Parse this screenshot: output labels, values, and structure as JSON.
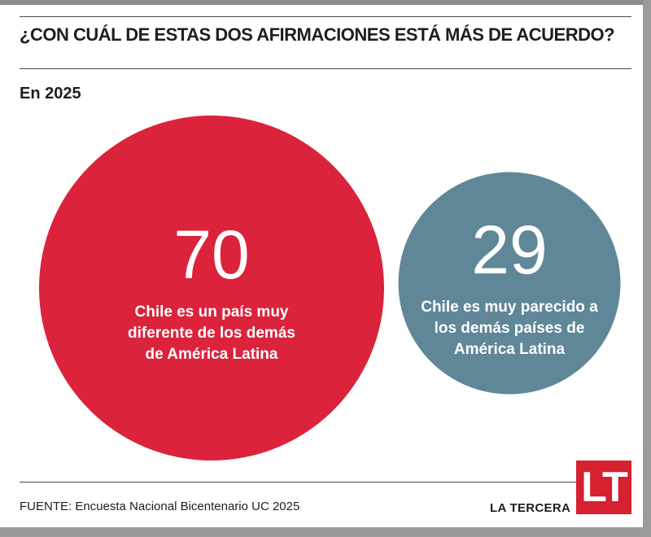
{
  "header": {
    "title": "¿CON CUÁL DE ESTAS DOS AFIRMACIONES ESTÁ MÁS DE ACUERDO?",
    "subtitle": "En 2025"
  },
  "chart_data": {
    "type": "bubble",
    "title": "¿CON CUÁL DE ESTAS DOS AFIRMACIONES ESTÁ MÁS DE ACUERDO?",
    "subtitle": "En 2025",
    "unit": "%",
    "items": [
      {
        "value": 70,
        "label_lines": [
          "Chile es un país muy",
          "diferente de los demás",
          "de América Latina"
        ],
        "color": "#db233b"
      },
      {
        "value": 29,
        "label_lines": [
          "Chile es muy parecido a",
          "los demás países de",
          "América Latina"
        ],
        "color": "#5f8798"
      }
    ]
  },
  "footer": {
    "source": "FUENTE: Encuesta Nacional Bicentenario UC 2025",
    "brand": "LA TERCERA",
    "logo_text": "LT",
    "logo_color": "#d62130"
  }
}
